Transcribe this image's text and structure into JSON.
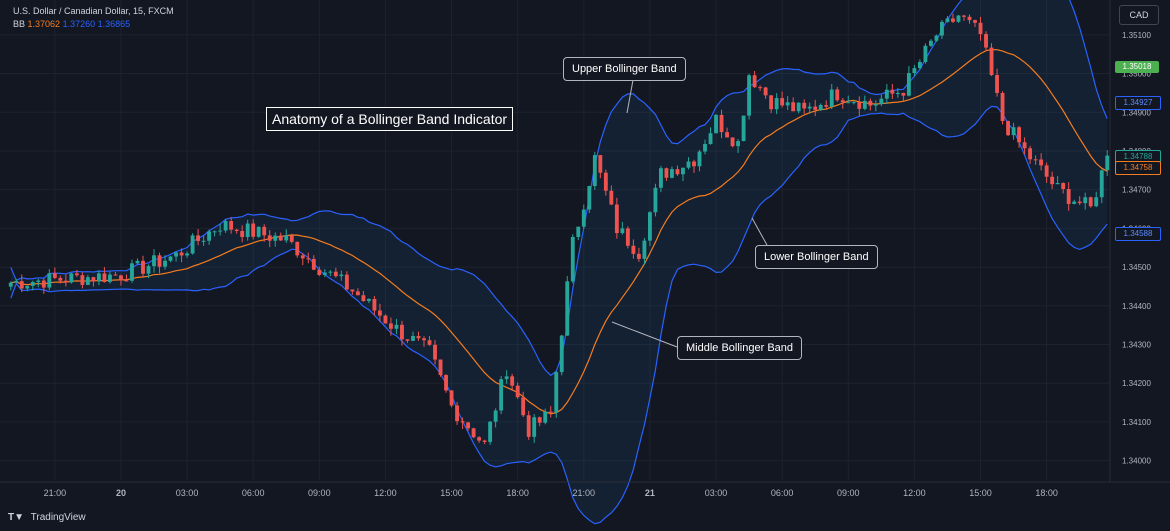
{
  "header": {
    "symbol_line": "U.S. Dollar / Canadian Dollar, 15, FXCM",
    "indicator_name": "BB",
    "bb_values": [
      "1.37062",
      "1.37260",
      "1.36865"
    ]
  },
  "currency_button": "CAD",
  "annotations": {
    "title": "Anatomy of a Bollinger Band Indicator",
    "upper": "Upper Bollinger Band",
    "middle": "Middle Bollinger Band",
    "lower": "Lower Bollinger Band"
  },
  "footer": {
    "brand": "TradingView",
    "logo": "tradingview-logo-icon"
  },
  "colors": {
    "background": "#131722",
    "up_candle": "#26a69a",
    "down_candle": "#ef5350",
    "band": "#2962ff",
    "basis": "#f57c1f",
    "band_fill": "rgba(33,150,243,0.08)",
    "last_price_tag": "#4caf50"
  },
  "price_tags": [
    {
      "value": "1.35018",
      "color": "#4caf50",
      "text_color": "#ffffff",
      "price": 1.35018
    },
    {
      "value": "1.34927",
      "color": "#131722",
      "text_color": "#5b8cff",
      "border": "#2962ff",
      "price": 1.34927
    },
    {
      "value": "1.34788",
      "color": "#131722",
      "text_color": "#26a69a",
      "border": "#26a69a",
      "price": 1.34788
    },
    {
      "value": "1.34758",
      "color": "#131722",
      "text_color": "#f57c1f",
      "border": "#f57c1f",
      "price": 1.34758
    },
    {
      "value": "1.34588",
      "color": "#131722",
      "text_color": "#5b8cff",
      "border": "#2962ff",
      "price": 1.34588
    }
  ],
  "chart_data": {
    "type": "candlestick",
    "title": "",
    "xlabel": "",
    "ylabel": "",
    "ylim": [
      1.3395,
      1.3519
    ],
    "grid": true,
    "y_ticks": [
      "1.35100",
      "1.35000",
      "1.34900",
      "1.34800",
      "1.34700",
      "1.34600",
      "1.34500",
      "1.34400",
      "1.34300",
      "1.34200",
      "1.34100",
      "1.34000"
    ],
    "x_ticks": [
      "21:00",
      "20",
      "03:00",
      "06:00",
      "09:00",
      "12:00",
      "15:00",
      "18:00",
      "21:00",
      "21",
      "03:00",
      "06:00",
      "09:00",
      "12:00",
      "15:00",
      "18:00"
    ],
    "x_tick_bar_index": [
      8,
      20,
      32,
      44,
      56,
      68,
      80,
      92,
      104,
      116,
      128,
      140,
      152,
      164,
      176,
      188
    ],
    "bar_count": 200,
    "anchors_close": [
      [
        0,
        1.3446
      ],
      [
        10,
        1.3447
      ],
      [
        20,
        1.3448
      ],
      [
        30,
        1.3453
      ],
      [
        38,
        1.3461
      ],
      [
        44,
        1.3459
      ],
      [
        50,
        1.3457
      ],
      [
        56,
        1.345
      ],
      [
        62,
        1.3444
      ],
      [
        70,
        1.3434
      ],
      [
        76,
        1.3428
      ],
      [
        80,
        1.3414
      ],
      [
        86,
        1.3404
      ],
      [
        90,
        1.3424
      ],
      [
        94,
        1.3408
      ],
      [
        98,
        1.3412
      ],
      [
        102,
        1.3456
      ],
      [
        106,
        1.3478
      ],
      [
        110,
        1.346
      ],
      [
        114,
        1.3454
      ],
      [
        118,
        1.3474
      ],
      [
        124,
        1.3478
      ],
      [
        128,
        1.3488
      ],
      [
        132,
        1.3482
      ],
      [
        134,
        1.35
      ],
      [
        138,
        1.3493
      ],
      [
        144,
        1.349
      ],
      [
        150,
        1.3495
      ],
      [
        156,
        1.3492
      ],
      [
        162,
        1.3496
      ],
      [
        168,
        1.351
      ],
      [
        172,
        1.3515
      ],
      [
        176,
        1.351
      ],
      [
        180,
        1.3488
      ],
      [
        184,
        1.348
      ],
      [
        190,
        1.347
      ],
      [
        196,
        1.3465
      ],
      [
        199,
        1.34788
      ]
    ],
    "series": [
      {
        "name": "",
        "kind": "upper_band"
      },
      {
        "name": "",
        "kind": "basis"
      },
      {
        "name": "",
        "kind": "lower_band"
      }
    ]
  }
}
